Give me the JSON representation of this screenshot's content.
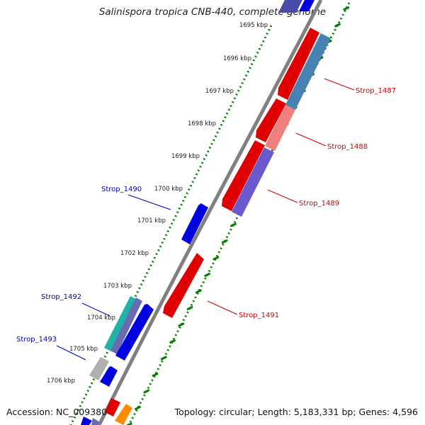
{
  "title": "Salinispora tropica CNB-440, complete genome",
  "accession": "Accession: NC_009380",
  "summary": "Topology: circular; Length: 5,183,331 bp; Genes: 4,596",
  "colors": {
    "backbone": "#808080",
    "forward_gene": "#e00000",
    "reverse_gene": "#0000e0",
    "scale_ticks": "#008000",
    "forward_label": "#d00000",
    "reverse_label": "#0000c0"
  },
  "scale_labels": [
    "1695 kbp",
    "1696 kbp",
    "1697 kbp",
    "1698 kbp",
    "1699 kbp",
    "1700 kbp",
    "1701 kbp",
    "1702 kbp",
    "1703 kbp",
    "1704 kbp",
    "1705 kbp",
    "1706 kbp"
  ],
  "gene_labels": [
    {
      "label": "Strop_1487",
      "strand": "forward"
    },
    {
      "label": "Strop_1488",
      "strand": "forward"
    },
    {
      "label": "Strop_1489",
      "strand": "forward"
    },
    {
      "label": "Strop_1490",
      "strand": "reverse"
    },
    {
      "label": "Strop_1491",
      "strand": "forward"
    },
    {
      "label": "Strop_1492",
      "strand": "reverse"
    },
    {
      "label": "Strop_1493",
      "strand": "reverse"
    }
  ]
}
